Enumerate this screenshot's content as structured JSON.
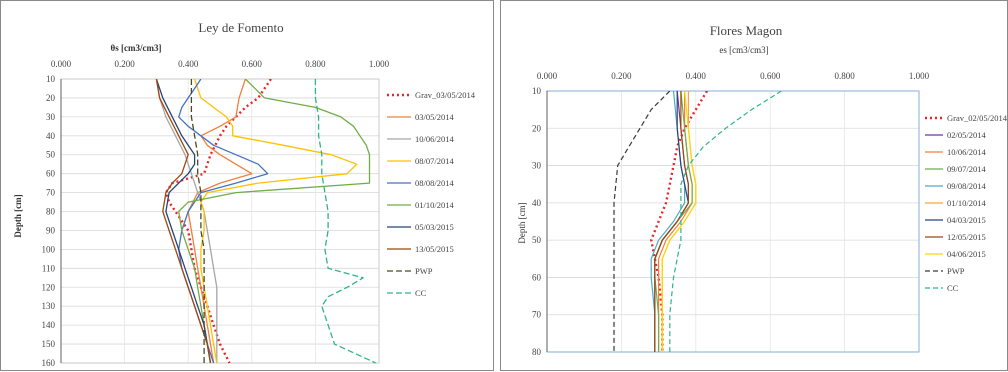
{
  "left": {
    "chart_data": {
      "type": "line",
      "title": "Ley de Fomento",
      "xlabel": "θs [cm3/cm3]",
      "ylabel": "Depth [cm]",
      "xlim": [
        0,
        1
      ],
      "ylim": [
        10,
        160
      ],
      "x_axis_position": "top",
      "y_inverted": true,
      "xticks": [
        "0.000",
        "0.200",
        "0.400",
        "0.600",
        "0.800",
        "1.000"
      ],
      "yticks": [
        "10",
        "20",
        "30",
        "40",
        "50",
        "60",
        "70",
        "80",
        "90",
        "100",
        "110",
        "120",
        "130",
        "140",
        "150",
        "160"
      ],
      "grid": true,
      "legend_position": "right",
      "series": [
        {
          "name": "Grav_03/05/2014",
          "color": "#e8262a",
          "dash": "2,3",
          "width": 2.4,
          "depth": [
            10,
            15,
            20,
            25,
            30,
            35,
            40,
            50,
            60,
            65,
            70,
            75,
            80,
            90,
            100,
            110,
            120,
            130,
            140,
            150,
            160
          ],
          "theta": [
            0.66,
            0.64,
            0.62,
            0.58,
            0.55,
            0.52,
            0.5,
            0.47,
            0.45,
            0.35,
            0.33,
            0.34,
            0.36,
            0.4,
            0.41,
            0.42,
            0.44,
            0.46,
            0.48,
            0.5,
            0.53
          ]
        },
        {
          "name": "03/05/2014",
          "color": "#f0803c",
          "dash": "",
          "width": 1.3,
          "depth": [
            10,
            20,
            30,
            35,
            40,
            45,
            50,
            55,
            60,
            65,
            70,
            80,
            90,
            100,
            110,
            120,
            130,
            140,
            150,
            160
          ],
          "theta": [
            0.58,
            0.56,
            0.55,
            0.5,
            0.44,
            0.46,
            0.5,
            0.55,
            0.6,
            0.5,
            0.43,
            0.4,
            0.41,
            0.42,
            0.43,
            0.44,
            0.45,
            0.46,
            0.47,
            0.48
          ]
        },
        {
          "name": "10/06/2014",
          "color": "#a6a6a6",
          "dash": "",
          "width": 1.3,
          "depth": [
            10,
            20,
            30,
            40,
            50,
            60,
            70,
            80,
            90,
            100,
            110,
            120,
            130,
            140,
            150,
            160
          ],
          "theta": [
            0.3,
            0.31,
            0.33,
            0.36,
            0.39,
            0.41,
            0.43,
            0.45,
            0.46,
            0.47,
            0.48,
            0.49,
            0.49,
            0.49,
            0.49,
            0.49
          ]
        },
        {
          "name": "08/07/2014",
          "color": "#ffc000",
          "dash": "",
          "width": 1.3,
          "depth": [
            10,
            20,
            25,
            30,
            35,
            40,
            45,
            50,
            55,
            60,
            65,
            70,
            75,
            80,
            90,
            100,
            110,
            120,
            130,
            140,
            150,
            160
          ],
          "theta": [
            0.42,
            0.44,
            0.48,
            0.52,
            0.54,
            0.54,
            0.7,
            0.85,
            0.93,
            0.9,
            0.62,
            0.46,
            0.44,
            0.45,
            0.45,
            0.44,
            0.44,
            0.45,
            0.46,
            0.47,
            0.48,
            0.49
          ]
        },
        {
          "name": "08/08/2014",
          "color": "#4472c4",
          "dash": "",
          "width": 1.3,
          "depth": [
            10,
            15,
            20,
            25,
            30,
            35,
            40,
            45,
            50,
            55,
            60,
            65,
            70,
            80,
            90,
            100,
            110,
            120,
            130,
            140,
            150,
            160
          ],
          "theta": [
            0.44,
            0.42,
            0.4,
            0.38,
            0.37,
            0.4,
            0.44,
            0.48,
            0.55,
            0.62,
            0.65,
            0.55,
            0.44,
            0.4,
            0.38,
            0.37,
            0.38,
            0.4,
            0.42,
            0.44,
            0.46,
            0.48
          ]
        },
        {
          "name": "01/10/2014",
          "color": "#70ad47",
          "dash": "",
          "width": 1.3,
          "depth": [
            10,
            20,
            25,
            30,
            35,
            40,
            45,
            50,
            55,
            60,
            65,
            70,
            75,
            80,
            90,
            100,
            110,
            120,
            130,
            140,
            150,
            160
          ],
          "theta": [
            0.58,
            0.64,
            0.8,
            0.88,
            0.92,
            0.94,
            0.96,
            0.97,
            0.97,
            0.97,
            0.97,
            0.55,
            0.4,
            0.37,
            0.38,
            0.4,
            0.42,
            0.43,
            0.44,
            0.45,
            0.46,
            0.47
          ]
        },
        {
          "name": "05/03/2015",
          "color": "#264478",
          "dash": "",
          "width": 1.3,
          "depth": [
            10,
            20,
            30,
            40,
            45,
            50,
            55,
            60,
            65,
            70,
            80,
            90,
            100,
            110,
            120,
            130,
            140,
            150,
            160
          ],
          "theta": [
            0.3,
            0.32,
            0.35,
            0.38,
            0.4,
            0.42,
            0.42,
            0.4,
            0.37,
            0.34,
            0.33,
            0.35,
            0.37,
            0.39,
            0.41,
            0.43,
            0.45,
            0.46,
            0.47
          ]
        },
        {
          "name": "13/05/2015",
          "color": "#9e480e",
          "dash": "",
          "width": 1.3,
          "depth": [
            10,
            20,
            30,
            40,
            50,
            60,
            65,
            70,
            80,
            90,
            100,
            110,
            120,
            130,
            140,
            150,
            160
          ],
          "theta": [
            0.3,
            0.31,
            0.34,
            0.37,
            0.4,
            0.38,
            0.35,
            0.33,
            0.32,
            0.34,
            0.36,
            0.38,
            0.4,
            0.42,
            0.44,
            0.46,
            0.47
          ]
        },
        {
          "name": "PWP",
          "color": "#4a4a1e",
          "dash": "6,3",
          "width": 1.3,
          "depth": [
            10,
            20,
            30,
            40,
            50,
            60,
            70,
            80,
            90,
            100,
            110,
            120,
            130,
            140,
            150,
            160
          ],
          "theta": [
            0.41,
            0.41,
            0.41,
            0.42,
            0.43,
            0.43,
            0.44,
            0.44,
            0.44,
            0.45,
            0.45,
            0.45,
            0.45,
            0.45,
            0.45,
            0.45
          ]
        },
        {
          "name": "CC",
          "color": "#2fb38d",
          "dash": "6,3",
          "width": 1.3,
          "depth": [
            10,
            20,
            30,
            40,
            50,
            60,
            70,
            80,
            90,
            100,
            110,
            115,
            120,
            125,
            130,
            140,
            150,
            160
          ],
          "theta": [
            0.8,
            0.8,
            0.81,
            0.81,
            0.82,
            0.82,
            0.83,
            0.84,
            0.84,
            0.83,
            0.84,
            0.95,
            0.9,
            0.84,
            0.82,
            0.84,
            0.86,
            0.99
          ]
        }
      ]
    }
  },
  "right": {
    "chart_data": {
      "type": "line",
      "title": "Flores Magon",
      "xlabel": "es [cm3/cm3]",
      "ylabel": "Depth [cm]",
      "xlim": [
        0,
        1
      ],
      "ylim": [
        10,
        80
      ],
      "x_axis_position": "top",
      "y_inverted": true,
      "xticks": [
        "0.000",
        "0.200",
        "0.400",
        "0.600",
        "0.800",
        "1.000"
      ],
      "yticks": [
        "10",
        "20",
        "30",
        "40",
        "50",
        "60",
        "70",
        "80"
      ],
      "grid": true,
      "legend_position": "right",
      "series": [
        {
          "name": "Grav_02/05/2014",
          "color": "#e8262a",
          "dash": "2,3",
          "width": 2.4,
          "depth": [
            10,
            15,
            20,
            25,
            30,
            35,
            40,
            45,
            50,
            55,
            60,
            70,
            80
          ],
          "theta": [
            0.43,
            0.4,
            0.37,
            0.35,
            0.34,
            0.33,
            0.32,
            0.3,
            0.28,
            0.29,
            0.3,
            0.31,
            0.31
          ]
        },
        {
          "name": "02/05/2014",
          "color": "#7030a0",
          "dash": "",
          "width": 1.2,
          "depth": [
            10,
            20,
            30,
            35,
            40,
            45,
            50,
            55,
            60,
            70,
            80
          ],
          "theta": [
            0.35,
            0.36,
            0.37,
            0.38,
            0.38,
            0.35,
            0.31,
            0.29,
            0.29,
            0.29,
            0.29
          ]
        },
        {
          "name": "10/06/2014",
          "color": "#f0803c",
          "dash": "",
          "width": 1.2,
          "depth": [
            10,
            20,
            30,
            35,
            40,
            45,
            50,
            55,
            60,
            70,
            80
          ],
          "theta": [
            0.37,
            0.37,
            0.38,
            0.39,
            0.39,
            0.36,
            0.32,
            0.3,
            0.3,
            0.3,
            0.3
          ]
        },
        {
          "name": "09/07/2014",
          "color": "#70ad47",
          "dash": "",
          "width": 1.2,
          "depth": [
            10,
            20,
            30,
            35,
            40,
            45,
            50,
            55,
            60,
            70,
            80
          ],
          "theta": [
            0.36,
            0.37,
            0.38,
            0.39,
            0.39,
            0.35,
            0.31,
            0.29,
            0.29,
            0.3,
            0.3
          ]
        },
        {
          "name": "09/08/2014",
          "color": "#4bacc6",
          "dash": "",
          "width": 1.2,
          "depth": [
            10,
            20,
            30,
            35,
            40,
            45,
            50,
            55,
            60,
            70,
            80
          ],
          "theta": [
            0.34,
            0.35,
            0.36,
            0.37,
            0.37,
            0.34,
            0.3,
            0.28,
            0.28,
            0.29,
            0.29
          ]
        },
        {
          "name": "01/10/2014",
          "color": "#ffa040",
          "dash": "",
          "width": 1.2,
          "depth": [
            10,
            20,
            30,
            35,
            40,
            45,
            50,
            55,
            60,
            70,
            80
          ],
          "theta": [
            0.38,
            0.38,
            0.39,
            0.4,
            0.4,
            0.37,
            0.33,
            0.31,
            0.31,
            0.31,
            0.31
          ]
        },
        {
          "name": "04/03/2015",
          "color": "#264478",
          "dash": "",
          "width": 1.2,
          "depth": [
            10,
            20,
            30,
            35,
            40,
            45,
            50,
            55,
            60,
            70,
            80
          ],
          "theta": [
            0.35,
            0.35,
            0.36,
            0.37,
            0.38,
            0.35,
            0.31,
            0.29,
            0.29,
            0.29,
            0.29
          ]
        },
        {
          "name": "12/05/2015",
          "color": "#9e480e",
          "dash": "",
          "width": 1.2,
          "depth": [
            10,
            20,
            30,
            35,
            40,
            45,
            50,
            55,
            60,
            70,
            80
          ],
          "theta": [
            0.36,
            0.36,
            0.37,
            0.38,
            0.38,
            0.35,
            0.31,
            0.29,
            0.29,
            0.29,
            0.29
          ]
        },
        {
          "name": "04/06/2015",
          "color": "#ffd700",
          "dash": "",
          "width": 1.2,
          "depth": [
            10,
            20,
            30,
            35,
            40,
            45,
            50,
            55,
            60,
            70,
            80
          ],
          "theta": [
            0.37,
            0.38,
            0.39,
            0.4,
            0.4,
            0.37,
            0.33,
            0.31,
            0.31,
            0.31,
            0.31
          ]
        },
        {
          "name": "PWP",
          "color": "#3a3a3a",
          "dash": "5,3",
          "width": 1.2,
          "depth": [
            10,
            15,
            20,
            25,
            30,
            40,
            50,
            60,
            70,
            80
          ],
          "theta": [
            0.33,
            0.28,
            0.25,
            0.22,
            0.19,
            0.18,
            0.18,
            0.18,
            0.18,
            0.18
          ]
        },
        {
          "name": "CC",
          "color": "#2fb38d",
          "dash": "5,3",
          "width": 1.2,
          "depth": [
            10,
            15,
            20,
            25,
            30,
            35,
            40,
            45,
            50,
            55,
            60,
            70,
            80
          ],
          "theta": [
            0.63,
            0.55,
            0.48,
            0.42,
            0.38,
            0.36,
            0.36,
            0.36,
            0.36,
            0.35,
            0.34,
            0.33,
            0.33
          ]
        }
      ]
    }
  }
}
